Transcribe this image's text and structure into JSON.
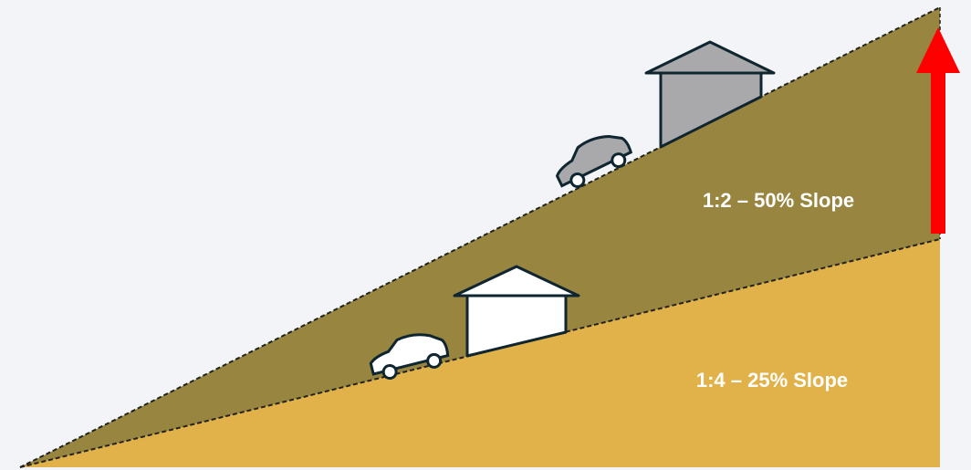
{
  "labels": {
    "steep": "1:2 – 50% Slope",
    "gentle": "1:4 – 25% Slope"
  }
}
